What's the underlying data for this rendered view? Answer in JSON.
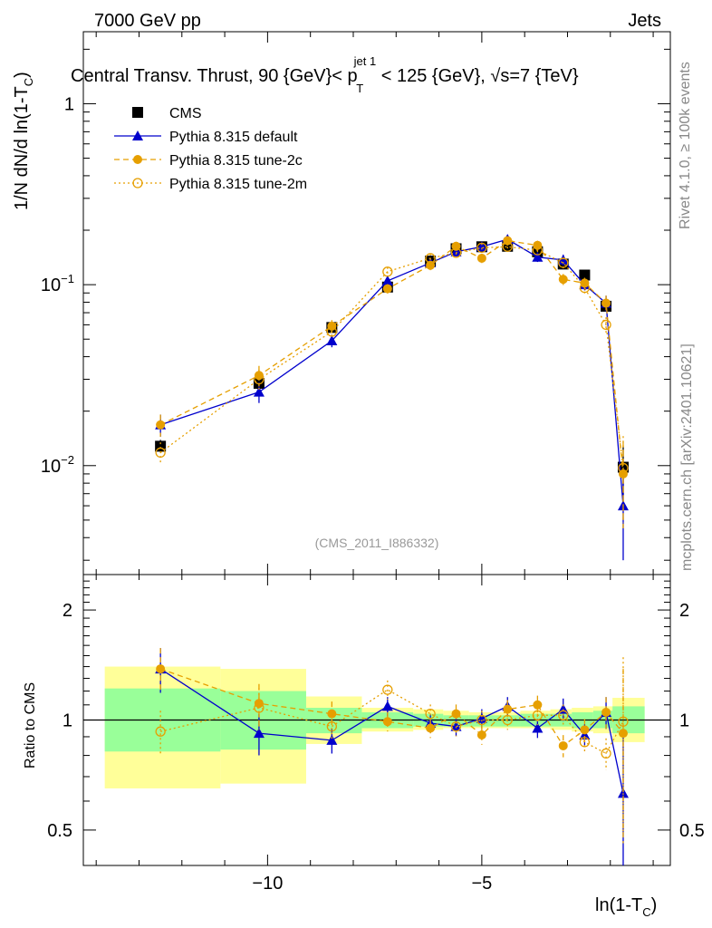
{
  "header": {
    "left": "7000 GeV pp",
    "right": "Jets",
    "title_main": "Central Transv. Thrust, 90 {GeV}< p",
    "title_sup": "jet 1",
    "title_sub": "T",
    "title_rest": " < 125 {GeV}, √s=7 {TeV}",
    "ylabel_main": "1/N    dN/d ln(1-T",
    "ylabel_sub": "C",
    "ylabel_end": ")",
    "xlabel_main": "ln(1-T",
    "xlabel_sub": "C",
    "xlabel_end": ")",
    "ratio_ylabel": "Ratio to CMS",
    "watermark": "(CMS_2011_I886332)",
    "side_rivet": "Rivet 4.1.0, ≥ 100k events",
    "side_mcplots": "mcplots.cern.ch [arXiv:2401.10621]"
  },
  "chart_data": [
    {
      "type": "line",
      "scale": "log",
      "xlim": [
        -14.3,
        -0.6
      ],
      "ylim": [
        0.0025,
        2.5
      ],
      "xticks": [
        -10,
        -5
      ],
      "xtick_labels": [
        "−10",
        "−5"
      ],
      "yticks": [
        0.01,
        0.1,
        1
      ],
      "x": [
        -12.5,
        -10.2,
        -8.5,
        -7.2,
        -6.2,
        -5.6,
        -5.0,
        -4.4,
        -3.7,
        -3.1,
        -2.6,
        -2.1,
        -1.7
      ],
      "series": [
        {
          "name": "CMS",
          "color": "#000000",
          "values": [
            0.0128,
            0.0285,
            0.058,
            0.097,
            0.135,
            0.158,
            0.162,
            0.163,
            0.152,
            0.13,
            0.113,
            0.076,
            0.0098
          ]
        },
        {
          "name": "Pythia 8.315 default",
          "color": "#0000cc",
          "values": [
            0.0168,
            0.0255,
            0.049,
            0.105,
            0.132,
            0.152,
            0.162,
            0.178,
            0.142,
            0.137,
            0.1,
            0.079,
            0.006
          ]
        },
        {
          "name": "Pythia 8.315 tune-2c",
          "color": "#e69f00",
          "values": [
            0.0168,
            0.0315,
            0.059,
            0.095,
            0.128,
            0.163,
            0.14,
            0.175,
            0.165,
            0.107,
            0.102,
            0.079,
            0.009
          ]
        },
        {
          "name": "Pythia 8.315 tune-2m",
          "color": "#e69f00",
          "values": [
            0.0118,
            0.03,
            0.055,
            0.118,
            0.14,
            0.15,
            0.16,
            0.162,
            0.155,
            0.132,
            0.096,
            0.06,
            0.0097
          ]
        }
      ]
    },
    {
      "type": "line",
      "scale": "log",
      "ylim": [
        0.4,
        2.5
      ],
      "yticks": [
        0.5,
        1,
        2
      ],
      "ytick_labels": [
        "0.5",
        "1",
        "2"
      ],
      "bands": [
        {
          "x0": -13.8,
          "x1": -11.1,
          "g_lo": 0.82,
          "g_hi": 1.22,
          "y_lo": 0.65,
          "y_hi": 1.4
        },
        {
          "x0": -11.1,
          "x1": -9.1,
          "g_lo": 0.83,
          "g_hi": 1.2,
          "y_lo": 0.67,
          "y_hi": 1.38
        },
        {
          "x0": -9.1,
          "x1": -7.8,
          "g_lo": 0.92,
          "g_hi": 1.08,
          "y_lo": 0.86,
          "y_hi": 1.16
        },
        {
          "x0": -7.8,
          "x1": -6.6,
          "g_lo": 0.95,
          "g_hi": 1.05,
          "y_lo": 0.93,
          "y_hi": 1.08
        },
        {
          "x0": -6.6,
          "x1": -5.9,
          "g_lo": 0.96,
          "g_hi": 1.04,
          "y_lo": 0.94,
          "y_hi": 1.07
        },
        {
          "x0": -5.9,
          "x1": -5.3,
          "g_lo": 0.96,
          "g_hi": 1.03,
          "y_lo": 0.95,
          "y_hi": 1.06
        },
        {
          "x0": -5.3,
          "x1": -4.7,
          "g_lo": 0.96,
          "g_hi": 1.03,
          "y_lo": 0.95,
          "y_hi": 1.05
        },
        {
          "x0": -4.7,
          "x1": -4.1,
          "g_lo": 0.96,
          "g_hi": 1.03,
          "y_lo": 0.95,
          "y_hi": 1.05
        },
        {
          "x0": -4.1,
          "x1": -3.4,
          "g_lo": 0.96,
          "g_hi": 1.04,
          "y_lo": 0.95,
          "y_hi": 1.06
        },
        {
          "x0": -3.4,
          "x1": -2.9,
          "g_lo": 0.96,
          "g_hi": 1.04,
          "y_lo": 0.94,
          "y_hi": 1.07
        },
        {
          "x0": -2.9,
          "x1": -2.4,
          "g_lo": 0.95,
          "g_hi": 1.05,
          "y_lo": 0.93,
          "y_hi": 1.08
        },
        {
          "x0": -2.4,
          "x1": -1.95,
          "g_lo": 0.95,
          "g_hi": 1.06,
          "y_lo": 0.92,
          "y_hi": 1.09
        },
        {
          "x0": -1.95,
          "x1": -1.2,
          "g_lo": 0.92,
          "g_hi": 1.09,
          "y_lo": 0.87,
          "y_hi": 1.15
        }
      ],
      "series": [
        {
          "name": "Pythia 8.315 default",
          "values": [
            1.38,
            0.92,
            0.88,
            1.09,
            0.98,
            0.96,
            1.01,
            1.09,
            0.95,
            1.07,
            0.91,
            1.05,
            0.63
          ]
        },
        {
          "name": "Pythia 8.315 tune-2c",
          "values": [
            1.38,
            1.11,
            1.04,
            0.99,
            0.95,
            1.04,
            0.91,
            1.07,
            1.1,
            0.85,
            0.94,
            1.05,
            0.92
          ]
        },
        {
          "name": "Pythia 8.315 tune-2m",
          "values": [
            0.93,
            1.08,
            0.96,
            1.21,
            1.04,
            0.96,
            1.0,
            1.0,
            1.03,
            1.03,
            0.87,
            0.81,
            0.99
          ]
        }
      ]
    }
  ]
}
